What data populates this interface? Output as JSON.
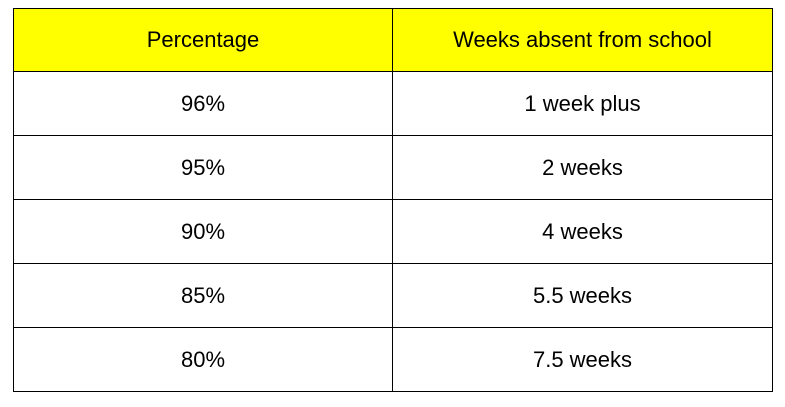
{
  "table": {
    "header_color": "#ffff00",
    "columns": [
      "Percentage",
      "Weeks absent from school"
    ],
    "rows": [
      [
        "96%",
        "1 week plus"
      ],
      [
        "95%",
        "2 weeks"
      ],
      [
        "90%",
        "4 weeks"
      ],
      [
        "85%",
        "5.5 weeks"
      ],
      [
        "80%",
        "7.5 weeks"
      ]
    ]
  }
}
